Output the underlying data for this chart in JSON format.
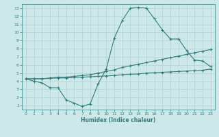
{
  "xlabel": "Humidex (Indice chaleur)",
  "ylabel": "",
  "background_color": "#cde8e8",
  "line_color": "#2e7d7d",
  "xlim": [
    -0.5,
    23.5
  ],
  "ylim": [
    0.5,
    13.5
  ],
  "xticks": [
    0,
    1,
    2,
    3,
    4,
    5,
    6,
    7,
    8,
    9,
    10,
    11,
    12,
    13,
    14,
    15,
    16,
    17,
    18,
    19,
    20,
    21,
    22,
    23
  ],
  "yticks": [
    1,
    2,
    3,
    4,
    5,
    6,
    7,
    8,
    9,
    10,
    11,
    12,
    13
  ],
  "x_values": [
    0,
    1,
    2,
    3,
    4,
    5,
    6,
    7,
    8,
    9,
    10,
    11,
    12,
    13,
    14,
    15,
    16,
    17,
    18,
    19,
    20,
    21,
    22,
    23
  ],
  "line1_y": [
    4.3,
    4.0,
    3.8,
    3.2,
    3.2,
    1.7,
    1.3,
    0.9,
    1.2,
    3.7,
    5.5,
    9.3,
    11.5,
    13.0,
    13.1,
    13.0,
    11.7,
    10.3,
    9.2,
    9.2,
    7.8,
    6.6,
    6.5,
    5.8
  ],
  "line2_y": [
    4.3,
    4.3,
    4.3,
    4.4,
    4.5,
    4.5,
    4.6,
    4.7,
    4.8,
    5.0,
    5.2,
    5.4,
    5.7,
    5.9,
    6.1,
    6.3,
    6.5,
    6.7,
    6.9,
    7.1,
    7.3,
    7.5,
    7.7,
    7.9
  ],
  "line3_y": [
    4.3,
    4.3,
    4.3,
    4.35,
    4.4,
    4.4,
    4.45,
    4.5,
    4.55,
    4.6,
    4.65,
    4.7,
    4.8,
    4.85,
    4.9,
    5.0,
    5.05,
    5.1,
    5.15,
    5.2,
    5.25,
    5.3,
    5.35,
    5.5
  ]
}
